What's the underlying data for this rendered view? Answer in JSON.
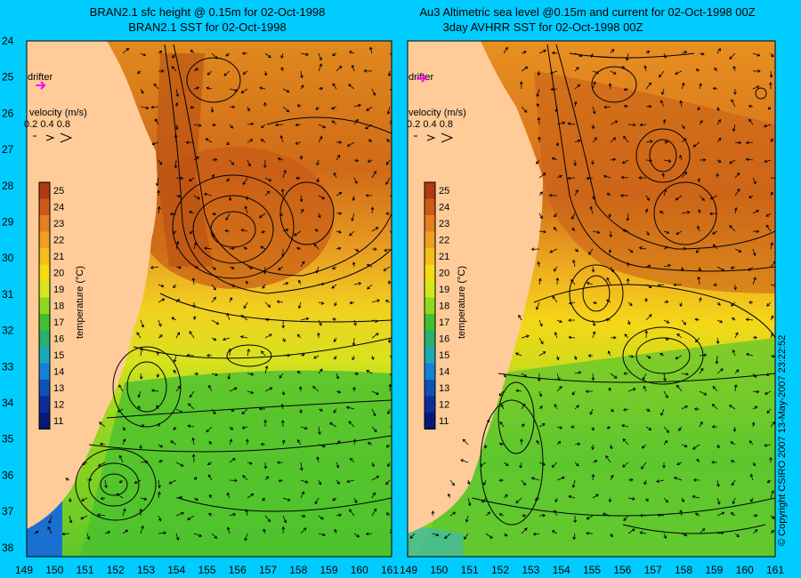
{
  "colors": {
    "background": "#00ccff",
    "land": "#ffcc99",
    "drifter": "#ff00ff"
  },
  "left_panel": {
    "title_line1": "BRAN2.1 sfc height @ 0.15m for 02-Oct-1998",
    "title_line2": "BRAN2.1 SST for 02-Oct-1998",
    "drifter_label": "drifter",
    "velocity_label": "velocity (m/s)",
    "velocity_scale": "0.2 0.4 0.8"
  },
  "right_panel": {
    "title_line1": "Au3 Altimetric sea level  @0.15m and current for 02-Oct-1998 00Z",
    "title_line2": "3day AVHRR SST for 02-Oct-1998 00Z",
    "drifter_label": "drifter",
    "velocity_label": "velocity (m/s)",
    "velocity_scale": "0.2 0.4 0.8"
  },
  "colorbar": {
    "label": "temperature (°C)",
    "ticks": [
      "25",
      "24",
      "23",
      "22",
      "21",
      "20",
      "19",
      "18",
      "17",
      "16",
      "15",
      "14",
      "13",
      "12",
      "11"
    ],
    "colors": [
      "#b33a10",
      "#cf5a18",
      "#e4801e",
      "#ef9e20",
      "#f5be18",
      "#f4dc10",
      "#d4e61c",
      "#90d820",
      "#40c030",
      "#2ab070",
      "#1ca8b8",
      "#1480d8",
      "#1050b8",
      "#0c2c98",
      "#081878"
    ]
  },
  "axes": {
    "lat_labels": [
      "24",
      "25",
      "26",
      "27",
      "28",
      "29",
      "30",
      "31",
      "32",
      "33",
      "34",
      "35",
      "36",
      "37",
      "38"
    ],
    "lon_labels": [
      "149",
      "150",
      "151",
      "152",
      "153",
      "154",
      "155",
      "156",
      "157",
      "158",
      "159",
      "160",
      "161"
    ]
  },
  "copyright": "© Copyright CSIRO 2007   13-May-2007 23:22:52"
}
